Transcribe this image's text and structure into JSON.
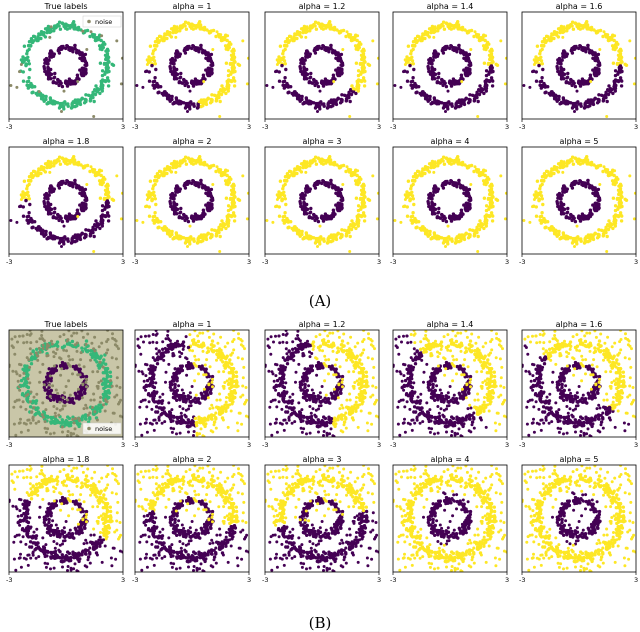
{
  "colors": {
    "cluster_a": "#440154",
    "cluster_b": "#fde725",
    "true_ring": "#35b779",
    "noise": "#8c8a68",
    "panel_bg_noisy_true": "#c9c6a8"
  },
  "chart_data": [
    {
      "panel_group": "A",
      "caption": "(A)",
      "type": "scatter",
      "xlim": [
        -3,
        3
      ],
      "ylim": [
        -3,
        3
      ],
      "x_tick_labels": [
        "-3",
        "3"
      ],
      "legend": {
        "entries": [
          "noise"
        ],
        "placement": "top-right of first panel"
      },
      "panels": [
        {
          "title": "True labels",
          "scene": "true",
          "split": null,
          "noise": "low"
        },
        {
          "title": "alpha = 1",
          "scene": "A",
          "split": 40,
          "noise": "low"
        },
        {
          "title": "alpha = 1.2",
          "scene": "A",
          "split": 80,
          "noise": "low"
        },
        {
          "title": "alpha = 1.4",
          "scene": "A",
          "split": 120,
          "noise": "low"
        },
        {
          "title": "alpha = 1.6",
          "scene": "A",
          "split": 155,
          "noise": "low"
        },
        {
          "title": "alpha = 1.8",
          "scene": "A",
          "split": 200,
          "noise": "low"
        },
        {
          "title": "alpha = 2",
          "scene": "rings",
          "split": null,
          "noise": "low"
        },
        {
          "title": "alpha = 3",
          "scene": "rings",
          "split": null,
          "noise": "low"
        },
        {
          "title": "alpha = 4",
          "scene": "rings",
          "split": null,
          "noise": "low"
        },
        {
          "title": "alpha = 5",
          "scene": "rings",
          "split": null,
          "noise": "low"
        }
      ],
      "series": [
        {
          "name": "inner ring",
          "radius": 1.0
        },
        {
          "name": "outer ring",
          "radius": 2.2
        },
        {
          "name": "noise",
          "distribution": "uniform on [-3,3]^2"
        }
      ]
    },
    {
      "panel_group": "B",
      "caption": "(B)",
      "type": "scatter",
      "xlim": [
        -3,
        3
      ],
      "ylim": [
        -3,
        3
      ],
      "x_tick_labels": [
        "-3",
        "3"
      ],
      "legend": {
        "entries": [
          "noise"
        ],
        "placement": "bottom-right of first panel"
      },
      "panels": [
        {
          "title": "True labels",
          "scene": "true",
          "split": null,
          "noise": "high"
        },
        {
          "title": "alpha = 1",
          "scene": "B",
          "split": 35,
          "noise": "high"
        },
        {
          "title": "alpha = 1.2",
          "scene": "B",
          "split": 45,
          "noise": "high"
        },
        {
          "title": "alpha = 1.4",
          "scene": "B",
          "split": 70,
          "noise": "high"
        },
        {
          "title": "alpha = 1.6",
          "scene": "B",
          "split": 80,
          "noise": "high"
        },
        {
          "title": "alpha = 1.8",
          "scene": "B",
          "split": 90,
          "noise": "high"
        },
        {
          "title": "alpha = 2",
          "scene": "B",
          "split": 110,
          "noise": "high"
        },
        {
          "title": "alpha = 3",
          "scene": "B",
          "split": 130,
          "noise": "high"
        },
        {
          "title": "alpha = 4",
          "scene": "ringsB",
          "split": null,
          "noise": "high"
        },
        {
          "title": "alpha = 5",
          "scene": "ringsB",
          "split": null,
          "noise": "high"
        }
      ],
      "series": [
        {
          "name": "inner ring",
          "radius": 1.0
        },
        {
          "name": "outer ring",
          "radius": 2.2
        },
        {
          "name": "noise",
          "distribution": "uniform on [-3,3]^2"
        }
      ]
    }
  ]
}
